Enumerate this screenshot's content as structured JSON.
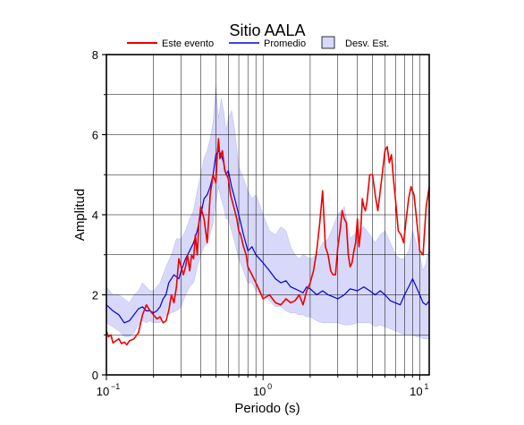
{
  "chart_data": {
    "type": "line",
    "title": "Sitio AALA",
    "xlabel": "Periodo (s)",
    "ylabel": "Amplitud",
    "x_scale": "log",
    "xlim": [
      0.1,
      11.5
    ],
    "ylim": [
      0,
      8
    ],
    "grid": true,
    "legend_position": "top",
    "x_tick_labels": [
      {
        "value": 0.1,
        "base": "10",
        "exp": "−1"
      },
      {
        "value": 1,
        "base": "10",
        "exp": "0"
      },
      {
        "value": 10,
        "base": "10",
        "exp": "1"
      }
    ],
    "y_ticks": [
      0,
      2,
      4,
      6,
      8
    ],
    "legend": {
      "event_label": "Este evento",
      "mean_label": "Promedio",
      "std_label": "Desv. Est."
    },
    "colors": {
      "event": "#ee0000",
      "mean": "#0000dd",
      "band_fill": "#d8d8fa",
      "band_stroke": "#b8b8ee",
      "grid": "#000000"
    },
    "series": [
      {
        "name": "Este evento",
        "x": [
          0.1,
          0.103,
          0.107,
          0.11,
          0.115,
          0.12,
          0.125,
          0.13,
          0.135,
          0.14,
          0.15,
          0.16,
          0.17,
          0.18,
          0.19,
          0.2,
          0.21,
          0.22,
          0.23,
          0.24,
          0.25,
          0.26,
          0.27,
          0.28,
          0.29,
          0.3,
          0.31,
          0.32,
          0.33,
          0.34,
          0.35,
          0.36,
          0.37,
          0.38,
          0.39,
          0.4,
          0.42,
          0.44,
          0.46,
          0.48,
          0.5,
          0.51,
          0.52,
          0.53,
          0.55,
          0.57,
          0.6,
          0.62,
          0.65,
          0.68,
          0.7,
          0.72,
          0.75,
          0.78,
          0.8,
          0.85,
          0.9,
          0.95,
          1.0,
          1.1,
          1.2,
          1.3,
          1.4,
          1.5,
          1.6,
          1.7,
          1.8,
          1.9,
          2.0,
          2.1,
          2.2,
          2.3,
          2.4,
          2.5,
          2.6,
          2.7,
          2.8,
          2.9,
          3.0,
          3.1,
          3.2,
          3.3,
          3.4,
          3.5,
          3.6,
          3.7,
          3.8,
          3.9,
          4.0,
          4.1,
          4.2,
          4.3,
          4.4,
          4.5,
          4.6,
          4.8,
          5.0,
          5.2,
          5.4,
          5.6,
          5.8,
          6.0,
          6.2,
          6.4,
          6.6,
          6.8,
          7.0,
          7.3,
          7.6,
          7.9,
          8.2,
          8.5,
          8.8,
          9.2,
          9.6,
          10.0,
          10.5,
          11.0,
          11.5
        ],
        "values": [
          1.1,
          0.95,
          1.0,
          0.8,
          0.85,
          0.9,
          0.78,
          0.82,
          0.75,
          0.85,
          0.9,
          1.05,
          1.5,
          1.75,
          1.6,
          1.5,
          1.4,
          1.45,
          1.3,
          1.35,
          1.6,
          2.0,
          1.8,
          2.2,
          2.9,
          2.7,
          2.5,
          2.7,
          3.0,
          2.6,
          3.0,
          2.9,
          3.5,
          3.0,
          3.8,
          4.2,
          3.9,
          3.3,
          4.5,
          5.0,
          4.8,
          5.5,
          5.9,
          5.4,
          5.6,
          5.1,
          4.9,
          4.5,
          4.2,
          3.9,
          3.6,
          3.5,
          3.2,
          3.0,
          2.7,
          2.5,
          2.3,
          2.1,
          1.9,
          2.0,
          1.8,
          1.75,
          1.9,
          1.8,
          1.85,
          2.0,
          1.75,
          2.1,
          2.3,
          2.6,
          3.1,
          3.8,
          4.6,
          3.2,
          3.0,
          2.6,
          2.5,
          2.5,
          3.2,
          3.6,
          4.1,
          3.9,
          3.8,
          3.0,
          2.7,
          2.8,
          3.1,
          3.3,
          3.9,
          3.2,
          3.6,
          4.4,
          4.2,
          4.1,
          4.3,
          5.0,
          5.0,
          4.5,
          4.1,
          4.6,
          5.1,
          5.6,
          5.7,
          5.3,
          5.5,
          4.9,
          4.4,
          3.6,
          3.5,
          3.3,
          3.9,
          4.4,
          4.7,
          4.5,
          3.8,
          3.1,
          3.0,
          4.2,
          4.7
        ]
      },
      {
        "name": "Promedio",
        "x": [
          0.1,
          0.11,
          0.12,
          0.13,
          0.14,
          0.15,
          0.16,
          0.17,
          0.18,
          0.19,
          0.2,
          0.21,
          0.22,
          0.23,
          0.24,
          0.25,
          0.27,
          0.29,
          0.3,
          0.32,
          0.34,
          0.36,
          0.38,
          0.4,
          0.42,
          0.44,
          0.46,
          0.48,
          0.5,
          0.52,
          0.54,
          0.56,
          0.58,
          0.6,
          0.63,
          0.66,
          0.7,
          0.75,
          0.8,
          0.85,
          0.9,
          1.0,
          1.1,
          1.2,
          1.3,
          1.4,
          1.5,
          1.6,
          1.7,
          1.8,
          1.9,
          2.0,
          2.2,
          2.4,
          2.6,
          2.8,
          3.0,
          3.3,
          3.6,
          4.0,
          4.4,
          4.8,
          5.2,
          5.6,
          6.0,
          6.5,
          7.0,
          7.5,
          8.0,
          8.5,
          9.0,
          9.5,
          10.0,
          10.5,
          11.0,
          11.5
        ],
        "values": [
          1.75,
          1.6,
          1.5,
          1.3,
          1.35,
          1.5,
          1.65,
          1.7,
          1.6,
          1.6,
          1.55,
          1.6,
          1.7,
          1.9,
          2.0,
          2.3,
          2.5,
          2.4,
          2.6,
          2.9,
          3.1,
          3.3,
          3.6,
          4.0,
          4.4,
          4.5,
          4.7,
          5.0,
          5.5,
          5.6,
          5.5,
          5.3,
          5.0,
          5.1,
          4.7,
          4.4,
          4.0,
          3.5,
          3.1,
          3.2,
          3.0,
          2.8,
          2.6,
          2.4,
          2.3,
          2.35,
          2.2,
          2.15,
          2.1,
          2.05,
          2.2,
          2.15,
          2.0,
          2.1,
          2.0,
          1.95,
          1.9,
          2.0,
          2.15,
          2.1,
          2.2,
          2.1,
          2.0,
          2.1,
          2.0,
          1.85,
          1.8,
          1.75,
          2.0,
          2.2,
          2.4,
          2.2,
          2.0,
          1.8,
          1.75,
          1.85
        ]
      },
      {
        "name": "Desv. Est.",
        "x": [
          0.1,
          0.11,
          0.12,
          0.13,
          0.14,
          0.15,
          0.16,
          0.17,
          0.18,
          0.19,
          0.2,
          0.22,
          0.24,
          0.26,
          0.28,
          0.3,
          0.32,
          0.34,
          0.36,
          0.38,
          0.4,
          0.42,
          0.44,
          0.46,
          0.48,
          0.5,
          0.52,
          0.54,
          0.56,
          0.58,
          0.6,
          0.63,
          0.66,
          0.7,
          0.75,
          0.8,
          0.85,
          0.9,
          1.0,
          1.1,
          1.2,
          1.3,
          1.4,
          1.5,
          1.6,
          1.7,
          1.8,
          1.9,
          2.0,
          2.2,
          2.4,
          2.6,
          2.8,
          3.0,
          3.3,
          3.6,
          4.0,
          4.4,
          4.8,
          5.2,
          5.6,
          6.0,
          6.5,
          7.0,
          7.5,
          8.0,
          8.5,
          9.0,
          9.5,
          10.0,
          10.5,
          11.0,
          11.5
        ],
        "upper": [
          2.2,
          2.0,
          2.0,
          1.9,
          1.8,
          2.0,
          2.1,
          2.3,
          2.2,
          2.1,
          2.1,
          2.3,
          2.7,
          3.0,
          3.4,
          3.4,
          3.6,
          3.9,
          4.1,
          4.6,
          5.0,
          5.4,
          5.6,
          5.9,
          6.3,
          7.2,
          6.4,
          6.9,
          6.6,
          6.1,
          6.4,
          6.6,
          6.1,
          5.2,
          4.9,
          4.6,
          4.4,
          4.5,
          4.0,
          3.6,
          3.5,
          3.7,
          3.6,
          3.2,
          3.0,
          2.9,
          3.0,
          2.95,
          2.9,
          3.0,
          3.3,
          3.4,
          3.7,
          4.0,
          4.2,
          3.4,
          3.6,
          3.7,
          3.5,
          3.3,
          3.5,
          3.6,
          3.3,
          3.0,
          2.9,
          2.9,
          3.1,
          3.6,
          3.3,
          3.0,
          2.6,
          2.8,
          3.2
        ],
        "lower": [
          1.3,
          1.2,
          1.1,
          0.95,
          0.95,
          1.05,
          1.25,
          1.35,
          1.3,
          1.35,
          1.3,
          1.3,
          1.5,
          1.55,
          1.6,
          1.7,
          2.0,
          2.2,
          2.3,
          2.7,
          3.0,
          3.2,
          3.3,
          3.5,
          3.8,
          4.3,
          4.7,
          4.4,
          4.2,
          3.9,
          3.9,
          3.6,
          3.3,
          2.9,
          2.6,
          2.3,
          2.3,
          2.1,
          2.0,
          1.85,
          1.7,
          1.7,
          1.6,
          1.55,
          1.55,
          1.5,
          1.5,
          1.45,
          1.45,
          1.35,
          1.3,
          1.3,
          1.3,
          1.3,
          1.25,
          1.25,
          1.3,
          1.3,
          1.3,
          1.2,
          1.25,
          1.2,
          1.15,
          1.1,
          1.05,
          1.0,
          1.0,
          1.0,
          0.95,
          0.95,
          0.9,
          0.9,
          0.9
        ]
      }
    ]
  }
}
